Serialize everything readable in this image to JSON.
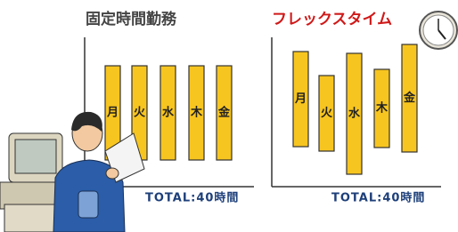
{
  "left": {
    "title": "固定時間勤務",
    "days": [
      "月",
      "火",
      "水",
      "木",
      "金"
    ],
    "total": "TOTAL:40時間"
  },
  "right": {
    "title": "フレックスタイム",
    "days": [
      "月",
      "火",
      "水",
      "木",
      "金"
    ],
    "total": "TOTAL:40時間"
  }
}
